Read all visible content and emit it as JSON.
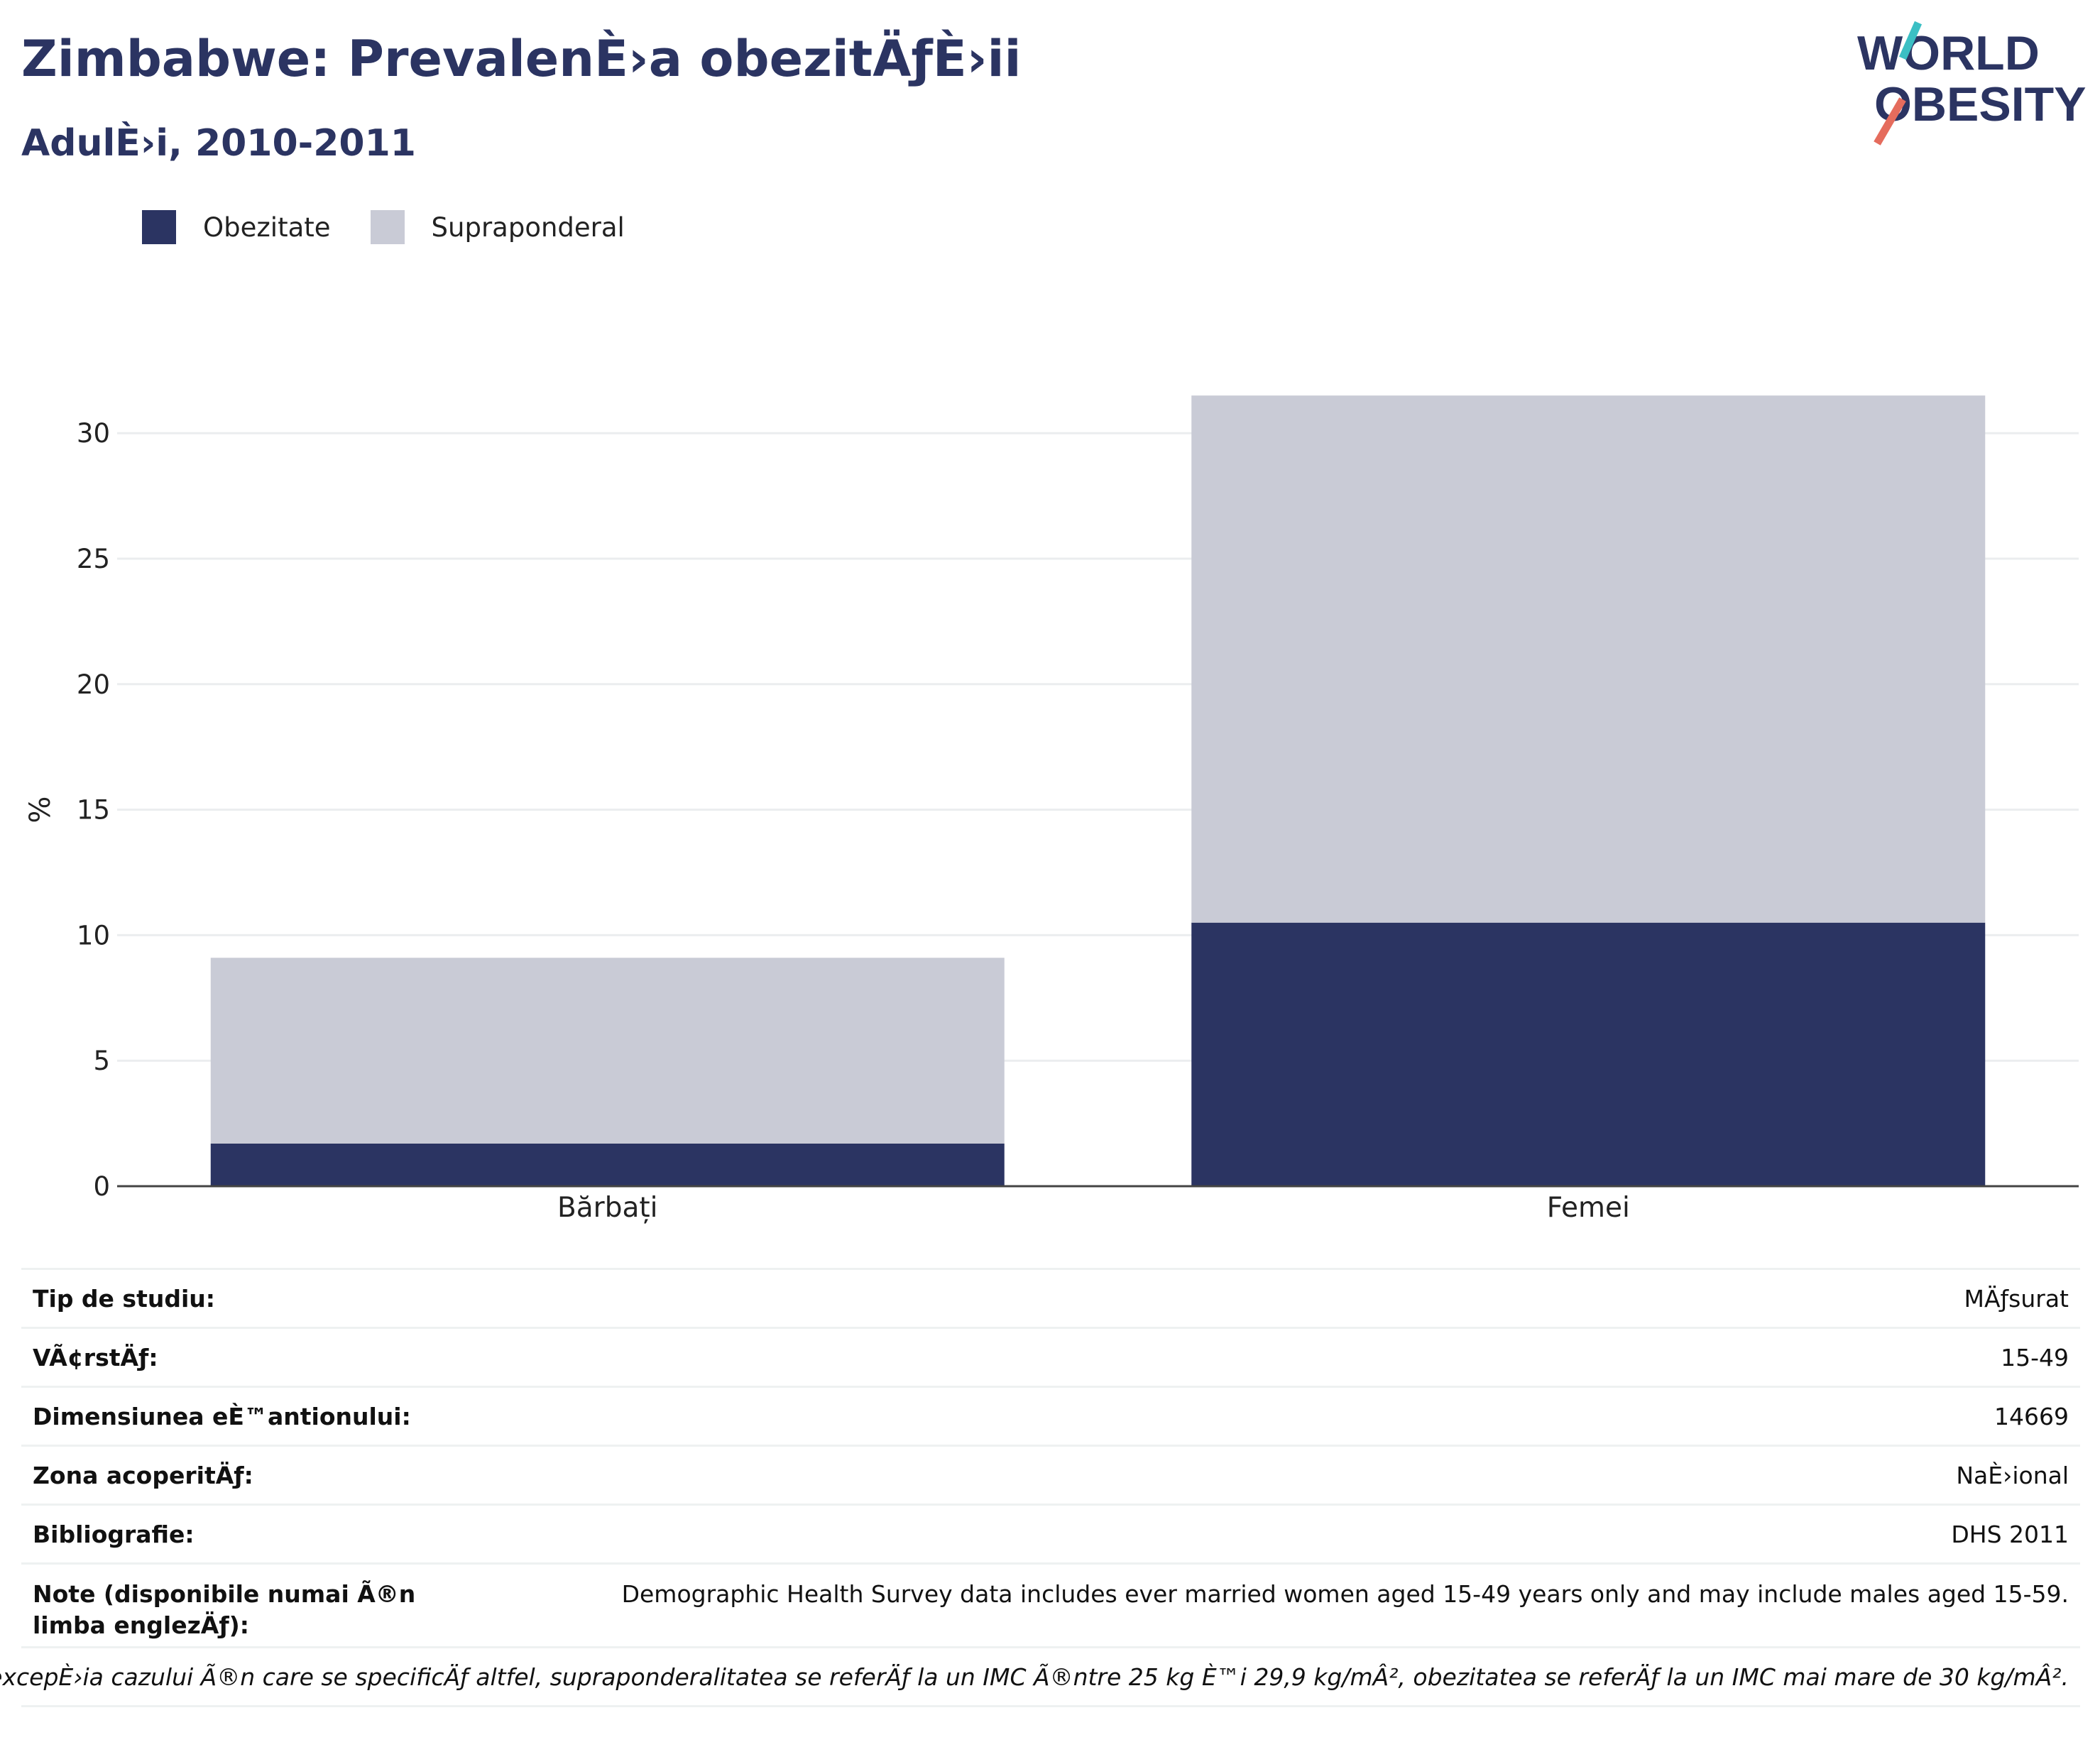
{
  "header": {
    "title": "Zimbabwe: PrevalenÈ›a obezitÄƒÈ›ii",
    "subtitle": "AdulÈ›i, 2010-2011"
  },
  "logo": {
    "line1": "WORLD",
    "line2": "OBESITY"
  },
  "colors": {
    "obesity": "#2b3462",
    "overweight": "#c9cbd6",
    "title": "#2b3462"
  },
  "legend": [
    {
      "label": "Obezitate",
      "color": "#2b3462"
    },
    {
      "label": "Supraponderal",
      "color": "#c9cbd6"
    }
  ],
  "chart_data": {
    "type": "bar",
    "stacked": true,
    "categories": [
      "Bărbați",
      "Femei"
    ],
    "series": [
      {
        "name": "Obezitate",
        "values": [
          1.7,
          10.5
        ]
      },
      {
        "name": "Supraponderal",
        "values": [
          7.4,
          21.0
        ]
      }
    ],
    "ylabel": "%",
    "yticks": [
      0,
      5,
      10,
      15,
      20,
      25,
      30
    ],
    "ylim": [
      0,
      33
    ],
    "grid": true
  },
  "table": {
    "rows": [
      {
        "label": "Tip de studiu:",
        "value": "MÄƒsurat"
      },
      {
        "label": "VÃ¢rstÄƒ:",
        "value": "15-49"
      },
      {
        "label": "Dimensiunea eÈ™antionului:",
        "value": "14669"
      },
      {
        "label": "Zona acoperitÄƒ:",
        "value": "NaÈ›ional"
      },
      {
        "label": "Bibliografie:",
        "value": "DHS 2011"
      }
    ],
    "notes": {
      "label": "Note (disponibile numai Ã®n limba englezÄƒ):",
      "value": "Demographic Health Survey data includes ever married women aged 15-49 years only and may include males aged 15-59."
    },
    "footnote": "Cu excepÈ›ia cazului Ã®n care se specificÄƒ altfel, supraponderalitatea se referÄƒ la un IMC Ã®ntre 25 kg È™i 29,9 kg/mÂ², obezitatea se referÄƒ la un IMC mai mare de 30 kg/mÂ²."
  }
}
